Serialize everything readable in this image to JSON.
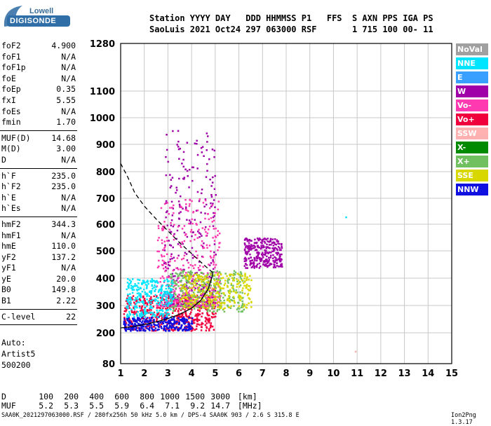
{
  "logo": {
    "line1": "Lowell",
    "line2": "DIGISONDE"
  },
  "header": {
    "line1": "Station YYYY DAY   DDD HHMMSS P1   FFS  S AXN PPS IGA PS",
    "line2": "SaoLuis 2021 Oct24 297 063000 RSF       1 715 100 00- 11"
  },
  "params": {
    "g1": [
      [
        "foF2",
        "4.900"
      ],
      [
        "foF1",
        "N/A"
      ],
      [
        "foF1p",
        "N/A"
      ],
      [
        "foE",
        "N/A"
      ],
      [
        "foEp",
        "0.35"
      ],
      [
        "fxI",
        "5.55"
      ],
      [
        "foEs",
        "N/A"
      ],
      [
        "fmin",
        "1.70"
      ]
    ],
    "g2": [
      [
        "MUF(D)",
        "14.68"
      ],
      [
        "M(D)",
        "3.00"
      ],
      [
        "D",
        "N/A"
      ]
    ],
    "g3": [
      [
        "h`F",
        "235.0"
      ],
      [
        "h`F2",
        "235.0"
      ],
      [
        "h`E",
        "N/A"
      ],
      [
        "h`Es",
        "N/A"
      ]
    ],
    "g4": [
      [
        "hmF2",
        "344.3"
      ],
      [
        "hmF1",
        "N/A"
      ],
      [
        "hmE",
        "110.0"
      ],
      [
        "yF2",
        "137.2"
      ],
      [
        "yF1",
        "N/A"
      ],
      [
        "yE",
        "20.0"
      ],
      [
        "B0",
        "149.8"
      ],
      [
        "B1",
        "2.22"
      ]
    ],
    "g5": [
      [
        "C-level",
        "22"
      ]
    ]
  },
  "auto": {
    "line1": "Auto:",
    "line2": "Artist5",
    "line3": "500200"
  },
  "legend": [
    {
      "label": "NoVal",
      "color": "#a0a0a0"
    },
    {
      "label": "NNE",
      "color": "#00e5ff"
    },
    {
      "label": "E",
      "color": "#3aa0ff"
    },
    {
      "label": "W",
      "color": "#a000a8"
    },
    {
      "label": "Vo-",
      "color": "#ff39b0"
    },
    {
      "label": "Vo+",
      "color": "#f0003c"
    },
    {
      "label": "SSW",
      "color": "#ffb0b0"
    },
    {
      "label": "X-",
      "color": "#008a00"
    },
    {
      "label": "X+",
      "color": "#70c060"
    },
    {
      "label": "SSE",
      "color": "#d8d800"
    },
    {
      "label": "NNW",
      "color": "#1010e0"
    }
  ],
  "chart_data": {
    "type": "scatter",
    "title": "",
    "xlabel": "",
    "ylabel": "",
    "xlim": [
      1,
      15
    ],
    "ylim": [
      80,
      1280
    ],
    "x_ticks": [
      "1",
      "2",
      "3",
      "4",
      "5",
      "6",
      "7",
      "8",
      "9",
      "10",
      "11",
      "12",
      "13",
      "14",
      "15"
    ],
    "y_ticks": [
      "80",
      "200",
      "300",
      "400",
      "500",
      "600",
      "700",
      "800",
      "900",
      "1000",
      "1100",
      "1280"
    ],
    "y_tick_values": [
      80,
      200,
      300,
      400,
      500,
      600,
      700,
      800,
      900,
      1000,
      1100,
      1280
    ],
    "y_scale": "nonlinear (ionogram height scale)",
    "grid": true,
    "trace_height_profile": [
      [
        1.0,
        218
      ],
      [
        1.5,
        222
      ],
      [
        2.0,
        230
      ],
      [
        2.5,
        240
      ],
      [
        3.0,
        252
      ],
      [
        3.5,
        268
      ],
      [
        4.0,
        290
      ],
      [
        4.4,
        320
      ],
      [
        4.7,
        360
      ],
      [
        4.85,
        400
      ],
      [
        4.9,
        420
      ]
    ],
    "dashed_profile": [
      [
        1.0,
        830
      ],
      [
        1.3,
        780
      ],
      [
        1.6,
        720
      ],
      [
        2.0,
        670
      ],
      [
        2.5,
        620
      ],
      [
        3.0,
        575
      ],
      [
        3.5,
        530
      ],
      [
        4.0,
        490
      ],
      [
        4.5,
        450
      ],
      [
        4.9,
        420
      ]
    ],
    "echo_clusters": [
      {
        "series": "Vo+",
        "region": "o-trace",
        "x_range": [
          1.1,
          5.0
        ],
        "y_range": [
          210,
          340
        ]
      },
      {
        "series": "W",
        "region": "spread-F",
        "x_range": [
          2.8,
          5.0
        ],
        "y_range": [
          300,
          960
        ]
      },
      {
        "series": "Vo-",
        "region": "spread-F",
        "x_range": [
          2.5,
          5.2
        ],
        "y_range": [
          300,
          700
        ]
      },
      {
        "series": "X+",
        "region": "x-trace",
        "x_range": [
          3.0,
          6.2
        ],
        "y_range": [
          280,
          430
        ]
      },
      {
        "series": "SSE",
        "region": "x-trace",
        "x_range": [
          3.5,
          6.5
        ],
        "y_range": [
          290,
          420
        ]
      },
      {
        "series": "NNW",
        "region": "low trace",
        "x_range": [
          1.1,
          4.0
        ],
        "y_range": [
          210,
          260
        ]
      },
      {
        "series": "NNE",
        "region": "oblique",
        "x_range": [
          1.2,
          3.2
        ],
        "y_range": [
          260,
          400
        ]
      },
      {
        "series": "W",
        "region": "oblique",
        "x_range": [
          6.2,
          7.8
        ],
        "y_range": [
          440,
          550
        ]
      }
    ],
    "isolated_points": [
      {
        "x": 10.5,
        "y": 630,
        "series": "NNE"
      },
      {
        "x": 10.9,
        "y": 130,
        "series": "SSW"
      }
    ]
  },
  "distance_row": {
    "label": "D",
    "values": [
      "100",
      "200",
      "400",
      "600",
      "800",
      "1000",
      "1500",
      "3000"
    ],
    "unit": "[km]"
  },
  "muf_row": {
    "label": "MUF",
    "values": [
      "5.2",
      "5.3",
      "5.5",
      "5.9",
      "6.4",
      "7.1",
      "9.2",
      "14.7"
    ],
    "unit": "[MHz]"
  },
  "footer": "SAA0K_2021297063000.RSF / 280fx256h 50 kHz 5.0 km / DPS-4 SAA0K 903 / 2.6 S 315.8 E",
  "version": "Ion2Png 1.3.17"
}
